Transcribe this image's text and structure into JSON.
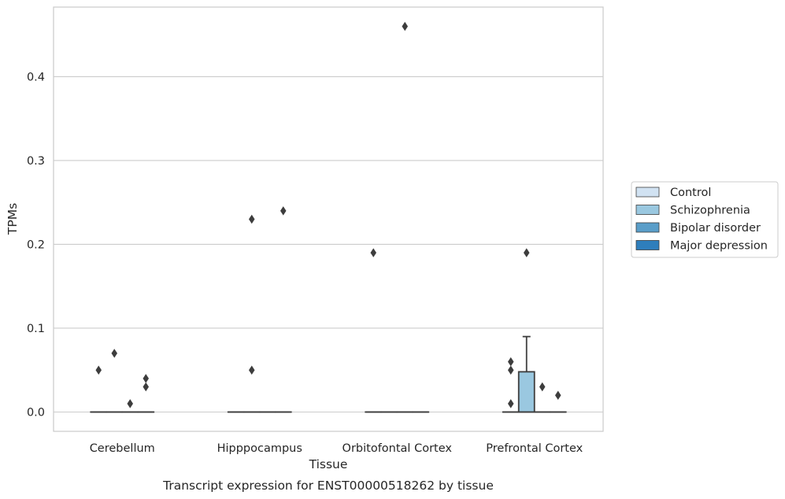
{
  "chart_data": {
    "type": "box",
    "xlabel": "Tissue",
    "ylabel": "TPMs",
    "caption": "Transcript expression for ENST00000518262 by tissue",
    "categories": [
      "Cerebellum",
      "Hipppocampus",
      "Orbitofontal Cortex",
      "Prefrontal Cortex"
    ],
    "ylim": [
      -0.023,
      0.483
    ],
    "yticks": [
      0.0,
      0.1,
      0.2,
      0.3,
      0.4
    ],
    "ytick_labels": [
      "0.0",
      "0.1",
      "0.2",
      "0.3",
      "0.4"
    ],
    "grid": "horizontal",
    "legend_position": "right",
    "series": [
      {
        "name": "Control",
        "color": "#d1e2f2",
        "boxes": [
          {
            "q1": 0,
            "median": 0,
            "q3": 0,
            "whislo": 0,
            "whishi": 0,
            "fliers": [
              0.05
            ]
          },
          {
            "q1": 0,
            "median": 0,
            "q3": 0,
            "whislo": 0,
            "whishi": 0,
            "fliers": []
          },
          {
            "q1": 0,
            "median": 0,
            "q3": 0,
            "whislo": 0,
            "whishi": 0,
            "fliers": [
              0.19
            ]
          },
          {
            "q1": 0,
            "median": 0,
            "q3": 0,
            "whislo": 0,
            "whishi": 0,
            "fliers": [
              0.06,
              0.05,
              0.01
            ]
          }
        ]
      },
      {
        "name": "Schizophrenia",
        "color": "#9ac8e0",
        "boxes": [
          {
            "q1": 0,
            "median": 0,
            "q3": 0,
            "whislo": 0,
            "whishi": 0,
            "fliers": [
              0.07
            ]
          },
          {
            "q1": 0,
            "median": 0,
            "q3": 0,
            "whislo": 0,
            "whishi": 0,
            "fliers": [
              0.23,
              0.05
            ]
          },
          {
            "q1": 0,
            "median": 0,
            "q3": 0,
            "whislo": 0,
            "whishi": 0,
            "fliers": []
          },
          {
            "q1": 0,
            "median": 0,
            "q3": 0.048,
            "whislo": 0,
            "whishi": 0.09,
            "fliers": [
              0.19
            ]
          }
        ]
      },
      {
        "name": "Bipolar disorder",
        "color": "#5a9ec9",
        "boxes": [
          {
            "q1": 0,
            "median": 0,
            "q3": 0,
            "whislo": 0,
            "whishi": 0,
            "fliers": [
              0.01
            ]
          },
          {
            "q1": 0,
            "median": 0,
            "q3": 0,
            "whislo": 0,
            "whishi": 0,
            "fliers": []
          },
          {
            "q1": 0,
            "median": 0,
            "q3": 0,
            "whislo": 0,
            "whishi": 0,
            "fliers": [
              0.46
            ]
          },
          {
            "q1": 0,
            "median": 0,
            "q3": 0,
            "whislo": 0,
            "whishi": 0,
            "fliers": [
              0.03
            ]
          }
        ]
      },
      {
        "name": "Major depression",
        "color": "#2e7ebc",
        "boxes": [
          {
            "q1": 0,
            "median": 0,
            "q3": 0,
            "whislo": 0,
            "whishi": 0,
            "fliers": [
              0.04,
              0.03
            ]
          },
          {
            "q1": 0,
            "median": 0,
            "q3": 0,
            "whislo": 0,
            "whishi": 0,
            "fliers": [
              0.24
            ]
          },
          {
            "q1": 0,
            "median": 0,
            "q3": 0,
            "whislo": 0,
            "whishi": 0,
            "fliers": []
          },
          {
            "q1": 0,
            "median": 0,
            "q3": 0,
            "whislo": 0,
            "whishi": 0,
            "fliers": [
              0.02
            ]
          }
        ]
      }
    ]
  }
}
